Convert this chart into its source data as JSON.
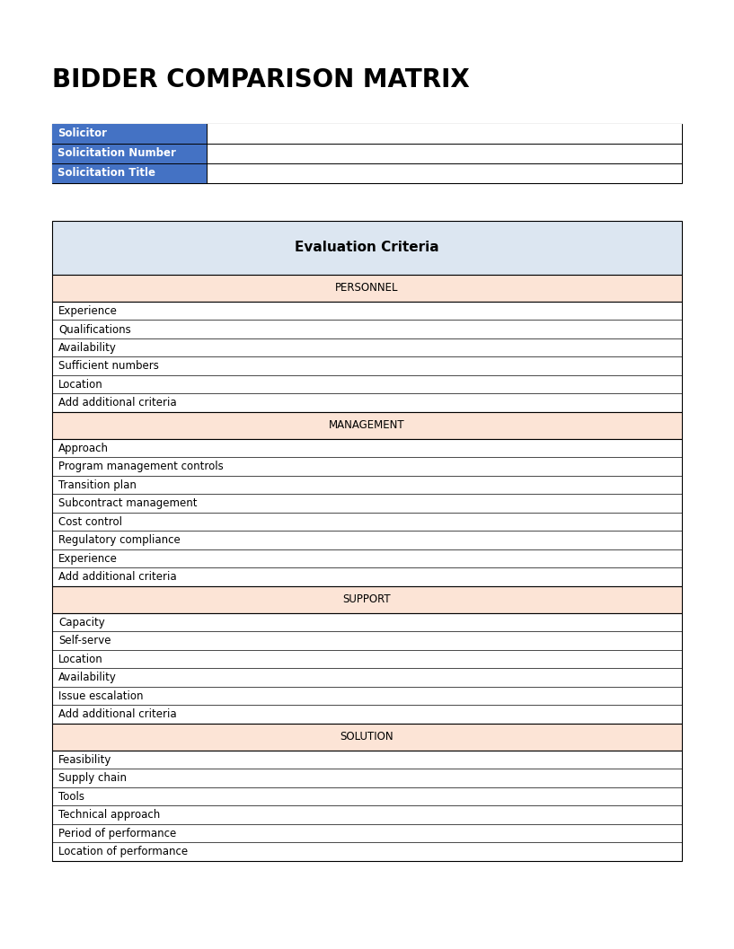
{
  "title": "BIDDER COMPARISON MATRIX",
  "title_fontsize": 20,
  "background_color": "#ffffff",
  "info_labels": [
    "Solicitor",
    "Solicitation Number",
    "Solicitation Title"
  ],
  "info_label_bg": "#4472c4",
  "info_label_fg": "#ffffff",
  "info_label_fontsize": 8.5,
  "eval_header_text": "Evaluation Criteria",
  "eval_header_bg": "#dce6f1",
  "eval_header_fontsize": 11,
  "section_header_bg": "#fce4d6",
  "section_header_fontsize": 8.5,
  "item_fontsize": 8.5,
  "border_color": "#000000",
  "item_bg": "#ffffff",
  "sections": [
    {
      "name": "PERSONNEL",
      "items": [
        "Experience",
        "Qualifications",
        "Availability",
        "Sufficient numbers",
        "Location",
        "Add additional criteria"
      ]
    },
    {
      "name": "MANAGEMENT",
      "items": [
        "Approach",
        "Program management controls",
        "Transition plan",
        "Subcontract management",
        "Cost control",
        "Regulatory compliance",
        "Experience",
        "Add additional criteria"
      ]
    },
    {
      "name": "SUPPORT",
      "items": [
        "Capacity",
        "Self-serve",
        "Location",
        "Availability",
        "Issue escalation",
        "Add additional criteria"
      ]
    },
    {
      "name": "SOLUTION",
      "items": [
        "Feasibility",
        "Supply chain",
        "Tools",
        "Technical approach",
        "Period of performance",
        "Location of performance"
      ]
    }
  ]
}
